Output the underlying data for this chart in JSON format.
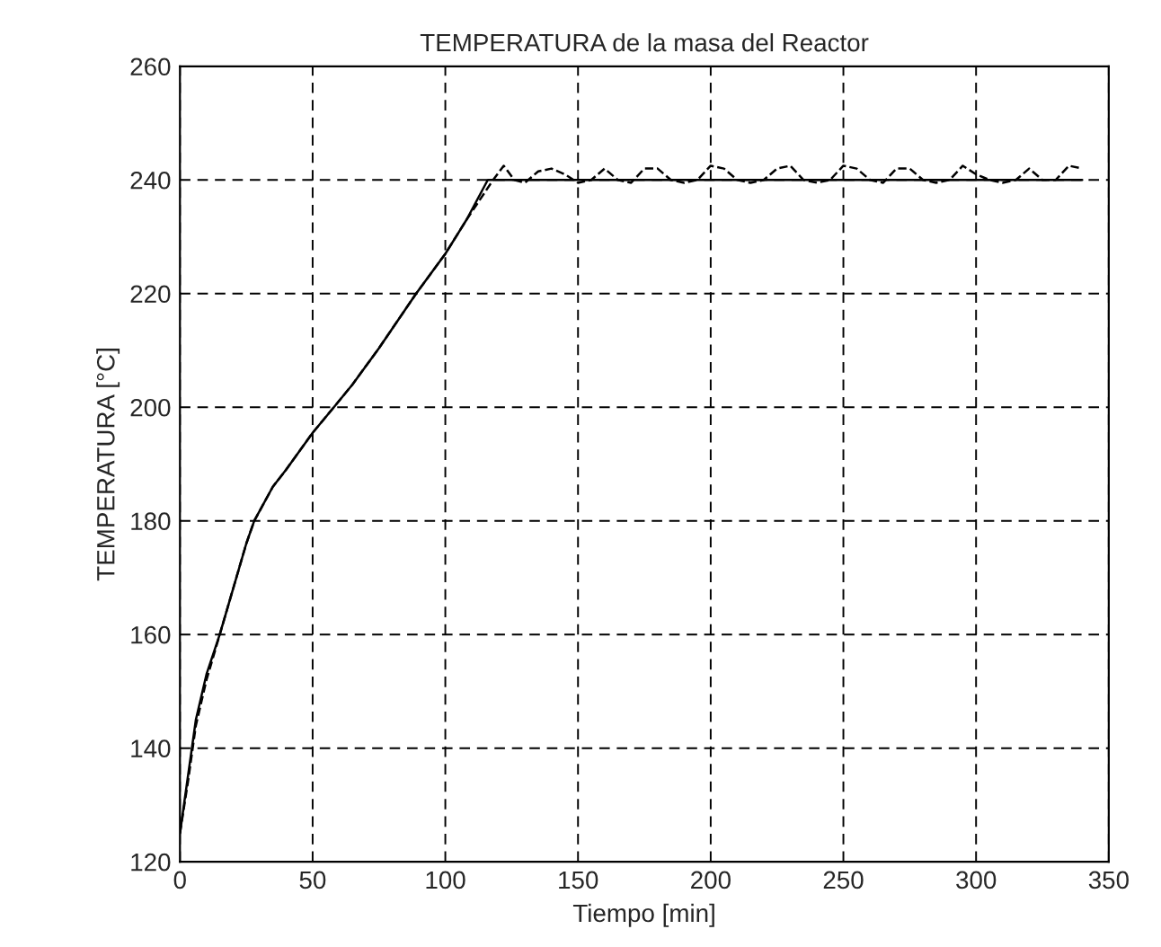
{
  "chart_data": {
    "type": "line",
    "title": "TEMPERATURA de la masa del Reactor",
    "xlabel": "Tiempo [min]",
    "ylabel": "TEMPERATURA [°C]",
    "series": [
      {
        "color": "#000000",
        "line_style": "solid",
        "x": [
          0,
          3,
          6,
          10,
          15,
          20,
          25,
          28,
          35,
          40,
          50,
          58,
          65,
          75,
          89,
          100,
          108,
          116,
          340
        ],
        "values": [
          125,
          135,
          145,
          153,
          160,
          168,
          176,
          180,
          186,
          189,
          195.5,
          200,
          204,
          210.4,
          220,
          227,
          233,
          240,
          240
        ]
      },
      {
        "color": "#000000",
        "line_style": "dashed",
        "x": [
          0,
          3,
          6,
          10,
          15,
          20,
          25,
          28,
          35,
          40,
          50,
          58,
          65,
          75,
          89,
          100,
          108,
          118,
          122,
          126,
          130,
          135,
          140,
          145,
          150,
          155,
          160,
          165,
          170,
          175,
          180,
          185,
          190,
          195,
          200,
          205,
          210,
          215,
          220,
          225,
          230,
          235,
          240,
          245,
          250,
          255,
          260,
          265,
          270,
          275,
          280,
          285,
          290,
          295,
          300,
          305,
          310,
          315,
          320,
          325,
          330,
          335,
          340
        ],
        "values": [
          125,
          134,
          144,
          152,
          160,
          168,
          176,
          180,
          186,
          189,
          195.5,
          200,
          204,
          210.4,
          220,
          227,
          233,
          240,
          242.5,
          240,
          239.5,
          241.5,
          242,
          241,
          239.5,
          240,
          242,
          240,
          239.5,
          242,
          242,
          240,
          239.5,
          240,
          242.5,
          242,
          240,
          239.5,
          240,
          242,
          242.5,
          240,
          239.5,
          240,
          242.5,
          242,
          240,
          239.5,
          242,
          242,
          240,
          239.5,
          240,
          242.5,
          241,
          240,
          239.5,
          240,
          242,
          240,
          240,
          242.5,
          242
        ]
      }
    ],
    "xlim": [
      0,
      350
    ],
    "xticks": [
      0,
      50,
      100,
      150,
      200,
      250,
      300,
      350
    ],
    "ylim": [
      120,
      260
    ],
    "yticks": [
      120,
      140,
      160,
      180,
      200,
      220,
      240,
      260
    ],
    "grid": true
  }
}
